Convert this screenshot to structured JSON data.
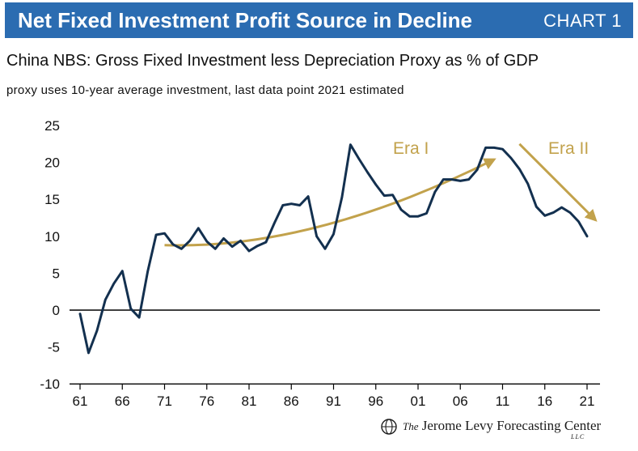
{
  "header": {
    "title": "Net Fixed Investment Profit Source in Decline",
    "chart_label": "CHART 1"
  },
  "subtitle": "China NBS: Gross Fixed Investment less Depreciation Proxy as % of GDP",
  "note": "proxy uses 10-year average investment, last data point 2021 estimated",
  "footer": {
    "logo_the": "The",
    "logo_name": "Jerome Levy Forecasting Center",
    "logo_llc": "LLC"
  },
  "colors": {
    "title_bar": "#2b6cb1",
    "series_line": "#13304f",
    "annotation": "#c2a24c",
    "zero_line": "#000000"
  },
  "chart_data": {
    "type": "line",
    "title": "China NBS: Gross Fixed Investment less Depreciation Proxy as % of GDP",
    "xlabel": "",
    "ylabel": "",
    "xlim": [
      1961,
      2021
    ],
    "ylim": [
      -10,
      25
    ],
    "x_ticks": [
      1961,
      1966,
      1971,
      1976,
      1981,
      1986,
      1991,
      1996,
      2001,
      2006,
      2011,
      2016,
      2021
    ],
    "x_tick_labels": [
      "61",
      "66",
      "71",
      "76",
      "81",
      "86",
      "91",
      "96",
      "01",
      "06",
      "11",
      "16",
      "21"
    ],
    "y_ticks": [
      -10,
      -5,
      0,
      5,
      10,
      15,
      20,
      25
    ],
    "y_tick_labels": [
      "-10",
      "-5",
      "0",
      "5",
      "10",
      "15",
      "20",
      "25"
    ],
    "grid": false,
    "series": [
      {
        "x": [
          1961,
          1962,
          1963,
          1964,
          1965,
          1966,
          1967,
          1968,
          1969,
          1970,
          1971,
          1972,
          1973,
          1974,
          1975,
          1976,
          1977,
          1978,
          1979,
          1980,
          1981,
          1982,
          1983,
          1984,
          1985,
          1986,
          1987,
          1988,
          1989,
          1990,
          1991,
          1992,
          1993,
          1994,
          1995,
          1996,
          1997,
          1998,
          1999,
          2000,
          2001,
          2002,
          2003,
          2004,
          2005,
          2006,
          2007,
          2008,
          2009,
          2010,
          2011,
          2012,
          2013,
          2014,
          2015,
          2016,
          2017,
          2018,
          2019,
          2020,
          2021
        ],
        "values": [
          -0.5,
          -5.8,
          -2.8,
          1.4,
          3.6,
          5.3,
          0.2,
          -1.0,
          5.2,
          10.2,
          10.4,
          8.9,
          8.3,
          9.4,
          11.1,
          9.3,
          8.3,
          9.7,
          8.6,
          9.4,
          8.0,
          8.7,
          9.2,
          11.8,
          14.2,
          14.4,
          14.2,
          15.4,
          10.0,
          8.3,
          10.3,
          15.3,
          22.4,
          20.5,
          18.7,
          17.0,
          15.5,
          15.6,
          13.6,
          12.7,
          12.7,
          13.1,
          16.0,
          17.7,
          17.7,
          17.5,
          17.7,
          19.0,
          22.0,
          22.0,
          21.8,
          20.6,
          19.1,
          17.1,
          14.0,
          12.8,
          13.2,
          13.9,
          13.2,
          12.0,
          10.0
        ]
      }
    ],
    "annotations": [
      {
        "label": "Era I",
        "type": "curved-arrow",
        "from": [
          1971,
          8.8
        ],
        "to": [
          2010,
          20.4
        ]
      },
      {
        "label": "Era II",
        "type": "straight-arrow",
        "from": [
          2013,
          22.5
        ],
        "to": [
          2022,
          12.2
        ]
      }
    ]
  }
}
